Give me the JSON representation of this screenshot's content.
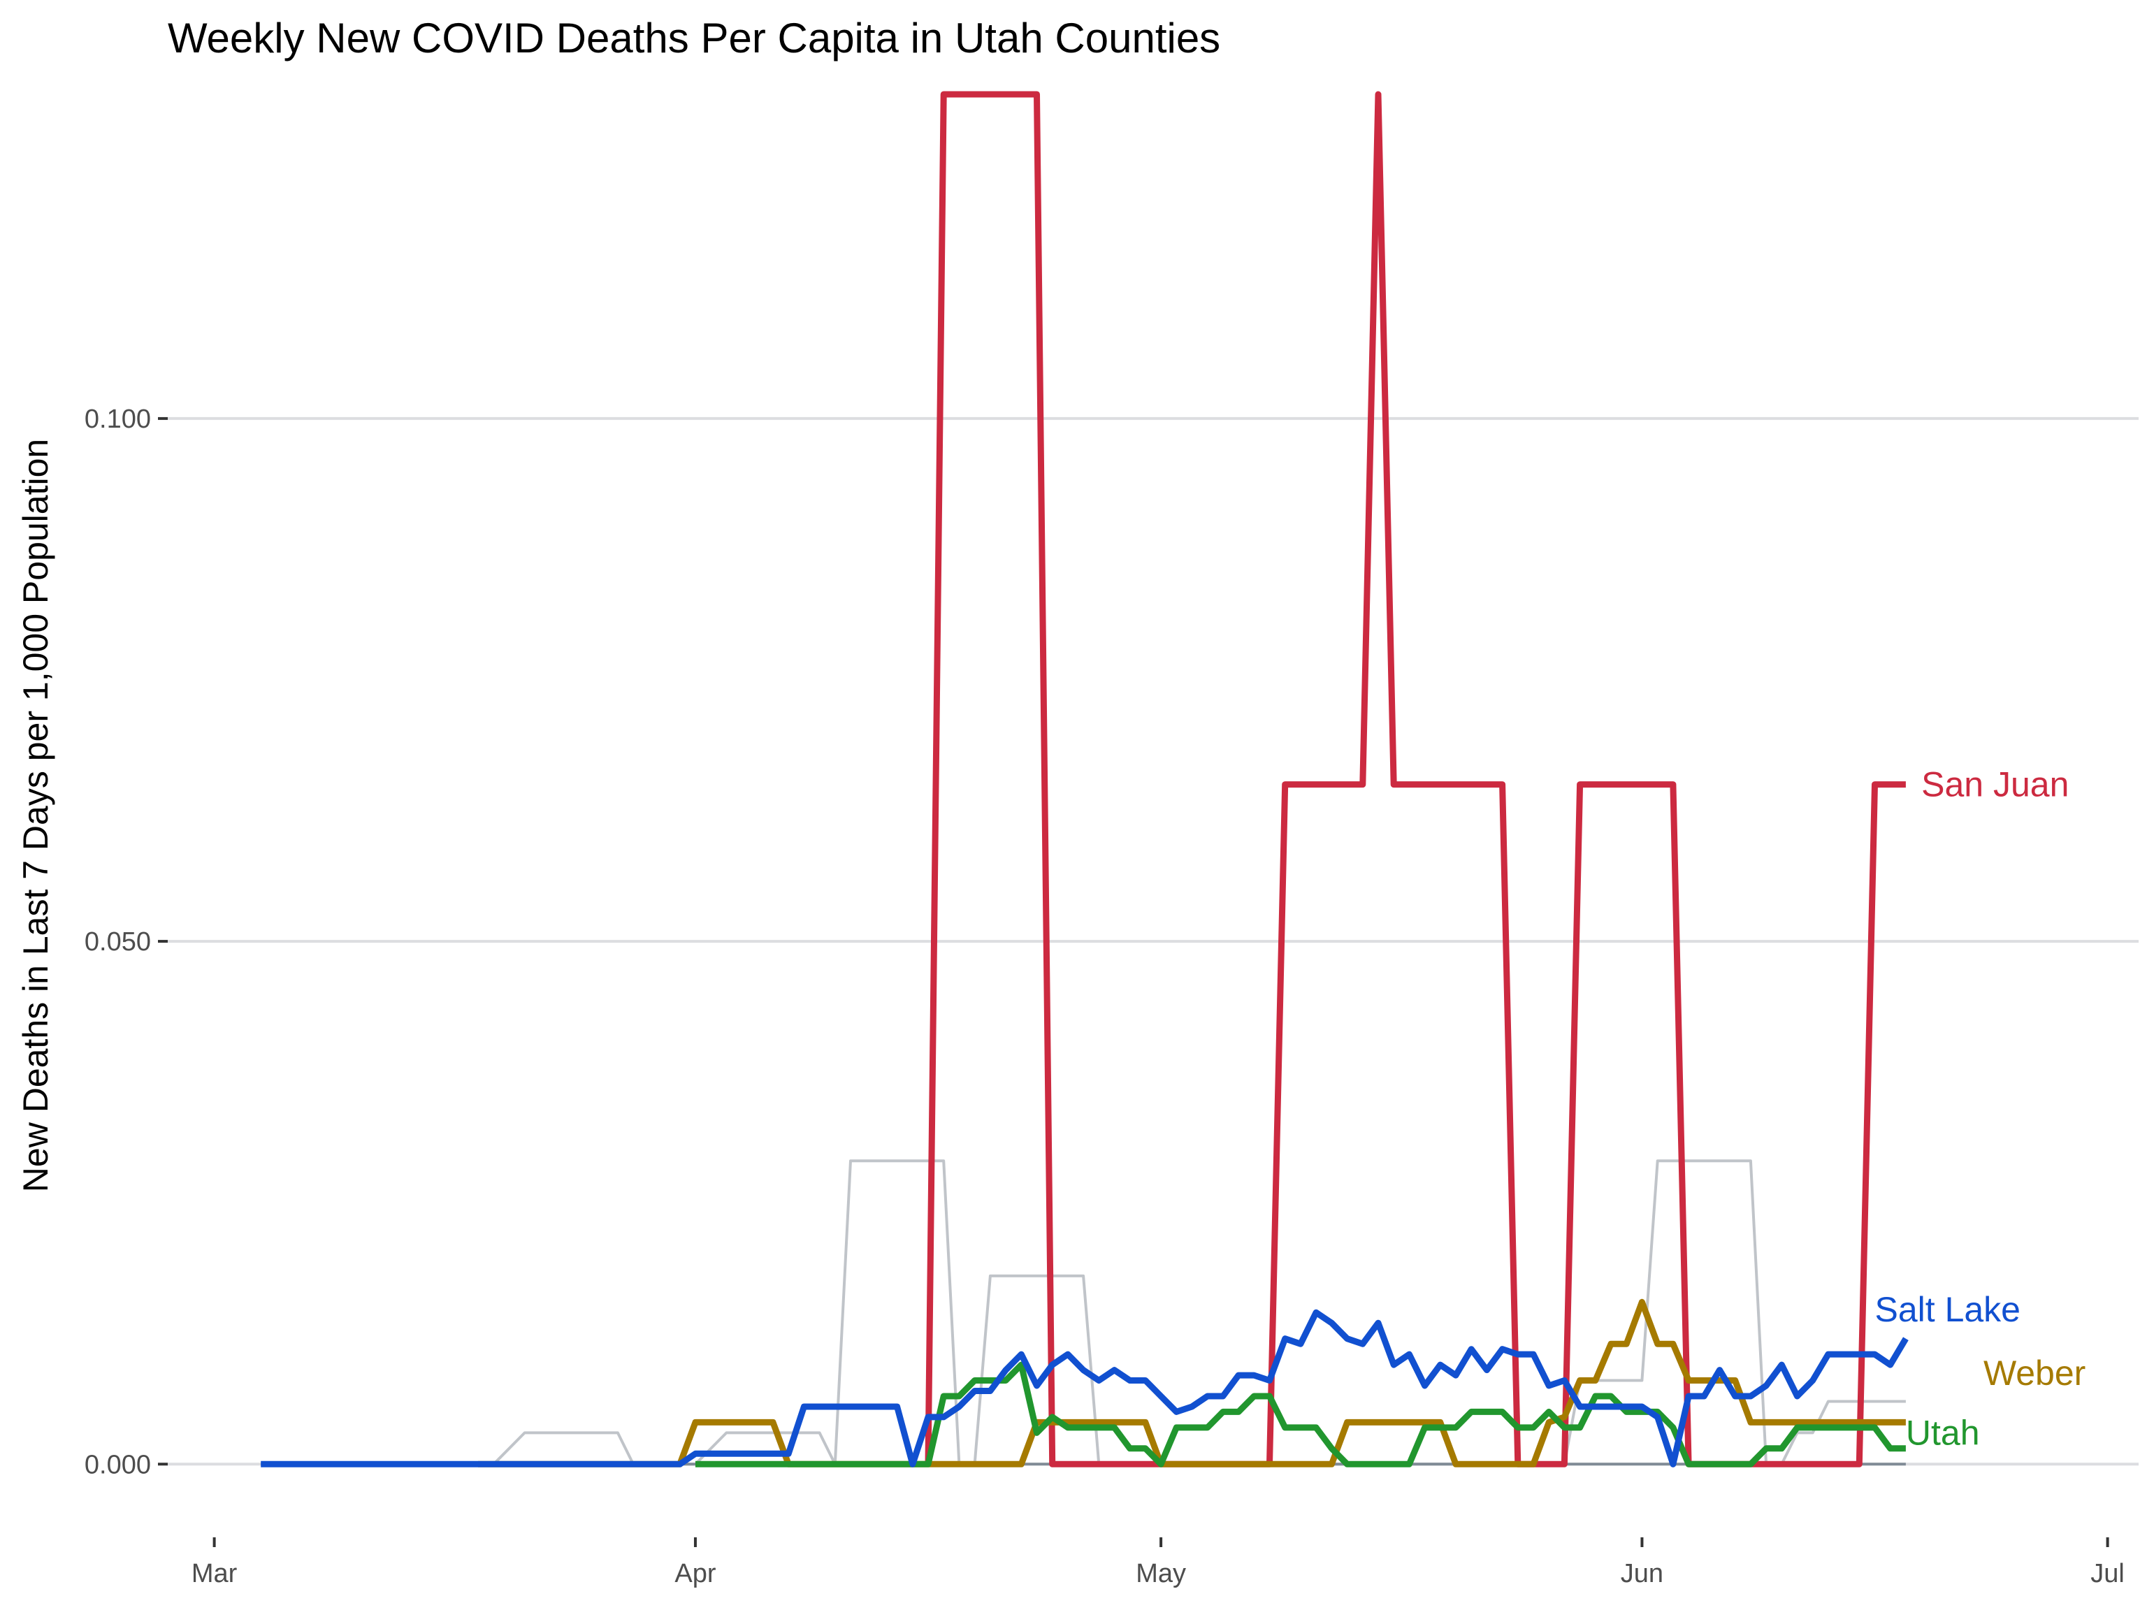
{
  "chart_data": {
    "type": "line",
    "title": "Weekly New COVID Deaths Per Capita in Utah Counties",
    "xlabel": "",
    "ylabel": "New Deaths in Last 7 Days per 1,000 Population",
    "xlim": [
      "2020-02-27",
      "2020-07-03"
    ],
    "ylim": [
      -0.007,
      0.13
    ],
    "x_ticks": [
      {
        "date": "2020-03-01",
        "label": "Mar"
      },
      {
        "date": "2020-04-01",
        "label": "Apr"
      },
      {
        "date": "2020-05-01",
        "label": "May"
      },
      {
        "date": "2020-06-01",
        "label": "Jun"
      },
      {
        "date": "2020-07-01",
        "label": "Jul"
      }
    ],
    "y_ticks": [
      {
        "value": 0.0,
        "label": "0.000"
      },
      {
        "value": 0.05,
        "label": "0.050"
      },
      {
        "value": 0.1,
        "label": "0.100"
      }
    ],
    "grid": true,
    "legend": "direct labels at line ends",
    "highlight_series": [
      {
        "name": "San Juan",
        "color": "#cc2a40",
        "points": [
          [
            "2020-04-16",
            0.0
          ],
          [
            "2020-04-17",
            0.131
          ],
          [
            "2020-04-23",
            0.131
          ],
          [
            "2020-04-24",
            0.0
          ],
          [
            "2020-05-08",
            0.0
          ],
          [
            "2020-05-09",
            0.065
          ],
          [
            "2020-05-14",
            0.065
          ],
          [
            "2020-05-15",
            0.131
          ],
          [
            "2020-05-16",
            0.065
          ],
          [
            "2020-05-23",
            0.065
          ],
          [
            "2020-05-24",
            0.0
          ],
          [
            "2020-05-27",
            0.0
          ],
          [
            "2020-05-28",
            0.065
          ],
          [
            "2020-06-03",
            0.065
          ],
          [
            "2020-06-04",
            0.0
          ],
          [
            "2020-06-15",
            0.0
          ],
          [
            "2020-06-16",
            0.065
          ],
          [
            "2020-06-18",
            0.065
          ]
        ]
      },
      {
        "name": "Salt Lake",
        "color": "#1150d0",
        "points": [
          [
            "2020-03-04",
            0.0
          ],
          [
            "2020-03-31",
            0.0
          ],
          [
            "2020-04-01",
            0.001
          ],
          [
            "2020-04-07",
            0.001
          ],
          [
            "2020-04-08",
            0.0055
          ],
          [
            "2020-04-14",
            0.0055
          ],
          [
            "2020-04-15",
            0.0
          ],
          [
            "2020-04-16",
            0.0045
          ],
          [
            "2020-04-17",
            0.0045
          ],
          [
            "2020-04-18",
            0.0055
          ],
          [
            "2020-04-19",
            0.007
          ],
          [
            "2020-04-20",
            0.007
          ],
          [
            "2020-04-21",
            0.009
          ],
          [
            "2020-04-22",
            0.0105
          ],
          [
            "2020-04-23",
            0.0075
          ],
          [
            "2020-04-24",
            0.0095
          ],
          [
            "2020-04-25",
            0.0105
          ],
          [
            "2020-04-26",
            0.009
          ],
          [
            "2020-04-27",
            0.008
          ],
          [
            "2020-04-28",
            0.009
          ],
          [
            "2020-04-29",
            0.008
          ],
          [
            "2020-04-30",
            0.008
          ],
          [
            "2020-05-01",
            0.0065
          ],
          [
            "2020-05-02",
            0.005
          ],
          [
            "2020-05-03",
            0.0055
          ],
          [
            "2020-05-04",
            0.0065
          ],
          [
            "2020-05-05",
            0.0065
          ],
          [
            "2020-05-06",
            0.0085
          ],
          [
            "2020-05-07",
            0.0085
          ],
          [
            "2020-05-08",
            0.008
          ],
          [
            "2020-05-09",
            0.012
          ],
          [
            "2020-05-10",
            0.0115
          ],
          [
            "2020-05-11",
            0.0145
          ],
          [
            "2020-05-12",
            0.0135
          ],
          [
            "2020-05-13",
            0.012
          ],
          [
            "2020-05-14",
            0.0115
          ],
          [
            "2020-05-15",
            0.0135
          ],
          [
            "2020-05-16",
            0.0095
          ],
          [
            "2020-05-17",
            0.0105
          ],
          [
            "2020-05-18",
            0.0075
          ],
          [
            "2020-05-19",
            0.0095
          ],
          [
            "2020-05-20",
            0.0085
          ],
          [
            "2020-05-21",
            0.011
          ],
          [
            "2020-05-22",
            0.009
          ],
          [
            "2020-05-23",
            0.011
          ],
          [
            "2020-05-24",
            0.0105
          ],
          [
            "2020-05-25",
            0.0105
          ],
          [
            "2020-05-26",
            0.0075
          ],
          [
            "2020-05-27",
            0.008
          ],
          [
            "2020-05-28",
            0.0055
          ],
          [
            "2020-05-29",
            0.0055
          ],
          [
            "2020-05-30",
            0.0055
          ],
          [
            "2020-05-31",
            0.0055
          ],
          [
            "2020-06-01",
            0.0055
          ],
          [
            "2020-06-02",
            0.0045
          ],
          [
            "2020-06-03",
            0.0
          ],
          [
            "2020-06-04",
            0.0065
          ],
          [
            "2020-06-05",
            0.0065
          ],
          [
            "2020-06-06",
            0.009
          ],
          [
            "2020-06-07",
            0.0065
          ],
          [
            "2020-06-08",
            0.0065
          ],
          [
            "2020-06-09",
            0.0075
          ],
          [
            "2020-06-10",
            0.0095
          ],
          [
            "2020-06-11",
            0.0065
          ],
          [
            "2020-06-12",
            0.008
          ],
          [
            "2020-06-13",
            0.0105
          ],
          [
            "2020-06-14",
            0.0105
          ],
          [
            "2020-06-15",
            0.0105
          ],
          [
            "2020-06-16",
            0.0105
          ],
          [
            "2020-06-17",
            0.0095
          ],
          [
            "2020-06-18",
            0.012
          ]
        ]
      },
      {
        "name": "Weber",
        "color": "#a57a00",
        "points": [
          [
            "2020-03-18",
            0.0
          ],
          [
            "2020-03-31",
            0.0
          ],
          [
            "2020-04-01",
            0.004
          ],
          [
            "2020-04-06",
            0.004
          ],
          [
            "2020-04-07",
            0.0
          ],
          [
            "2020-04-22",
            0.0
          ],
          [
            "2020-04-23",
            0.004
          ],
          [
            "2020-04-28",
            0.004
          ],
          [
            "2020-04-30",
            0.004
          ],
          [
            "2020-05-01",
            0.0
          ],
          [
            "2020-05-11",
            0.0
          ],
          [
            "2020-05-12",
            0.0
          ],
          [
            "2020-05-13",
            0.004
          ],
          [
            "2020-05-18",
            0.004
          ],
          [
            "2020-05-19",
            0.004
          ],
          [
            "2020-05-20",
            0.0
          ],
          [
            "2020-05-23",
            0.0
          ],
          [
            "2020-05-24",
            0.0
          ],
          [
            "2020-05-25",
            0.0
          ],
          [
            "2020-05-26",
            0.004
          ],
          [
            "2020-05-27",
            0.0045
          ],
          [
            "2020-05-28",
            0.008
          ],
          [
            "2020-05-29",
            0.008
          ],
          [
            "2020-05-30",
            0.0115
          ],
          [
            "2020-05-31",
            0.0115
          ],
          [
            "2020-06-01",
            0.0155
          ],
          [
            "2020-06-02",
            0.0115
          ],
          [
            "2020-06-03",
            0.0115
          ],
          [
            "2020-06-04",
            0.008
          ],
          [
            "2020-06-05",
            0.008
          ],
          [
            "2020-06-06",
            0.008
          ],
          [
            "2020-06-07",
            0.008
          ],
          [
            "2020-06-08",
            0.004
          ],
          [
            "2020-06-12",
            0.004
          ],
          [
            "2020-06-18",
            0.004
          ]
        ]
      },
      {
        "name": "Utah",
        "color": "#21962e",
        "points": [
          [
            "2020-04-01",
            0.0
          ],
          [
            "2020-04-16",
            0.0
          ],
          [
            "2020-04-17",
            0.0065
          ],
          [
            "2020-04-18",
            0.0065
          ],
          [
            "2020-04-19",
            0.008
          ],
          [
            "2020-04-21",
            0.008
          ],
          [
            "2020-04-22",
            0.0095
          ],
          [
            "2020-04-23",
            0.003
          ],
          [
            "2020-04-24",
            0.0045
          ],
          [
            "2020-04-25",
            0.0035
          ],
          [
            "2020-04-28",
            0.0035
          ],
          [
            "2020-04-29",
            0.0015
          ],
          [
            "2020-04-30",
            0.0015
          ],
          [
            "2020-05-01",
            0.0
          ],
          [
            "2020-05-02",
            0.0035
          ],
          [
            "2020-05-04",
            0.0035
          ],
          [
            "2020-05-05",
            0.005
          ],
          [
            "2020-05-06",
            0.005
          ],
          [
            "2020-05-07",
            0.0065
          ],
          [
            "2020-05-08",
            0.0065
          ],
          [
            "2020-05-09",
            0.0035
          ],
          [
            "2020-05-11",
            0.0035
          ],
          [
            "2020-05-12",
            0.0015
          ],
          [
            "2020-05-13",
            0.0
          ],
          [
            "2020-05-17",
            0.0
          ],
          [
            "2020-05-18",
            0.0035
          ],
          [
            "2020-05-20",
            0.0035
          ],
          [
            "2020-05-21",
            0.005
          ],
          [
            "2020-05-23",
            0.005
          ],
          [
            "2020-05-24",
            0.0035
          ],
          [
            "2020-05-25",
            0.0035
          ],
          [
            "2020-05-26",
            0.005
          ],
          [
            "2020-05-27",
            0.0035
          ],
          [
            "2020-05-28",
            0.0035
          ],
          [
            "2020-05-29",
            0.0065
          ],
          [
            "2020-05-30",
            0.0065
          ],
          [
            "2020-05-31",
            0.005
          ],
          [
            "2020-06-02",
            0.005
          ],
          [
            "2020-06-03",
            0.0035
          ],
          [
            "2020-06-04",
            0.0
          ],
          [
            "2020-06-07",
            0.0
          ],
          [
            "2020-06-08",
            0.0
          ],
          [
            "2020-06-09",
            0.0015
          ],
          [
            "2020-06-10",
            0.0015
          ],
          [
            "2020-06-11",
            0.0035
          ],
          [
            "2020-06-16",
            0.0035
          ],
          [
            "2020-06-17",
            0.0015
          ],
          [
            "2020-06-18",
            0.0015
          ]
        ]
      }
    ],
    "background_series": [
      {
        "color": "#c0c4c9",
        "points": [
          [
            "2020-03-19",
            0.0
          ],
          [
            "2020-03-21",
            0.003
          ],
          [
            "2020-03-27",
            0.003
          ],
          [
            "2020-03-28",
            0.0
          ],
          [
            "2020-04-01",
            0.0
          ],
          [
            "2020-04-03",
            0.003
          ],
          [
            "2020-04-09",
            0.003
          ],
          [
            "2020-04-10",
            0.0
          ],
          [
            "2020-04-11",
            0.029
          ],
          [
            "2020-04-17",
            0.029
          ],
          [
            "2020-04-18",
            0.0
          ],
          [
            "2020-04-19",
            0.0
          ],
          [
            "2020-04-20",
            0.018
          ],
          [
            "2020-04-26",
            0.018
          ],
          [
            "2020-04-27",
            0.0
          ],
          [
            "2020-05-27",
            0.0
          ],
          [
            "2020-05-28",
            0.008
          ],
          [
            "2020-06-01",
            0.008
          ],
          [
            "2020-06-02",
            0.029
          ],
          [
            "2020-06-08",
            0.029
          ],
          [
            "2020-06-09",
            0.0
          ],
          [
            "2020-06-10",
            0.0
          ],
          [
            "2020-06-11",
            0.003
          ],
          [
            "2020-06-12",
            0.003
          ],
          [
            "2020-06-13",
            0.006
          ],
          [
            "2020-06-18",
            0.006
          ]
        ]
      },
      {
        "color": "#808b96",
        "points": [
          [
            "2020-03-04",
            0.0
          ],
          [
            "2020-06-18",
            0.0
          ]
        ]
      }
    ],
    "annotations": [
      {
        "series": "San Juan",
        "text": "San Juan",
        "x": "2020-06-19",
        "y": 0.065
      },
      {
        "series": "Salt Lake",
        "text": "Salt Lake",
        "x": "2020-06-16",
        "y": 0.0148
      },
      {
        "series": "Weber",
        "text": "Weber",
        "x": "2020-06-23",
        "y": 0.0087
      },
      {
        "series": "Utah",
        "text": "Utah",
        "x": "2020-06-18",
        "y": 0.003
      }
    ]
  }
}
